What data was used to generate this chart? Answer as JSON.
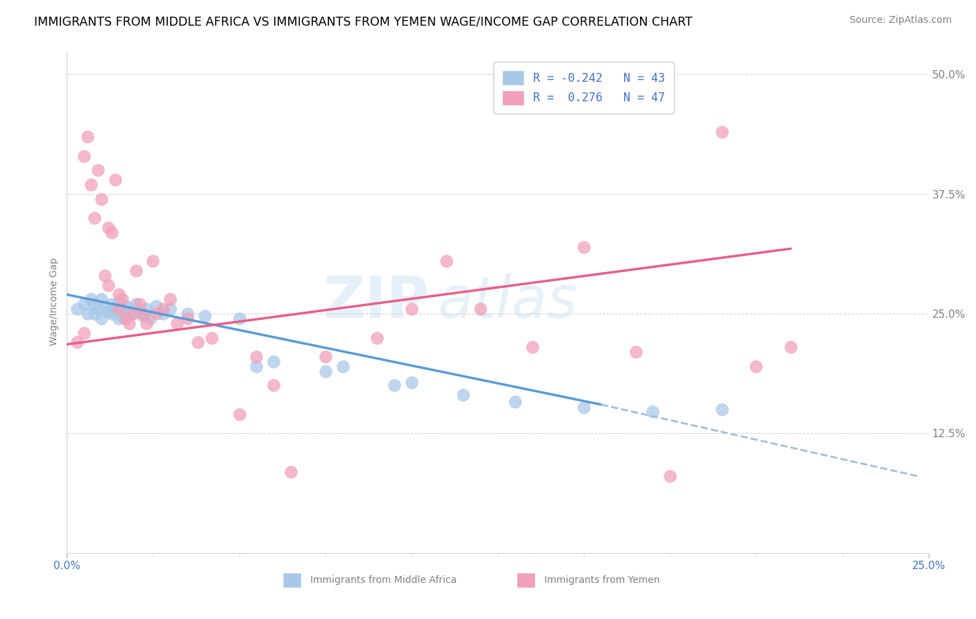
{
  "title": "IMMIGRANTS FROM MIDDLE AFRICA VS IMMIGRANTS FROM YEMEN WAGE/INCOME GAP CORRELATION CHART",
  "source": "Source: ZipAtlas.com",
  "ylabel": "Wage/Income Gap",
  "xlim": [
    0.0,
    0.25
  ],
  "ylim": [
    0.0,
    0.525
  ],
  "y_ticks": [
    0.125,
    0.25,
    0.375,
    0.5
  ],
  "x_ticks": [
    0.0,
    0.25
  ],
  "watermark_zip": "ZIP",
  "watermark_atlas": "atlas",
  "legend1_label": "R = -0.242   N = 43",
  "legend2_label": "R =  0.276   N = 47",
  "scatter_blue_color": "#a8c8e8",
  "scatter_pink_color": "#f0a0b8",
  "line_blue_color": "#5b9bd5",
  "line_pink_color": "#e85f8a",
  "line_dashed_color": "#a0c0d8",
  "background_color": "#ffffff",
  "title_fontsize": 12.5,
  "source_fontsize": 10,
  "legend_fontsize": 12,
  "axis_label_fontsize": 10,
  "tick_fontsize": 11,
  "tick_color_blue": "#4472c4",
  "blue_scatter_x": [
    0.003,
    0.005,
    0.006,
    0.007,
    0.008,
    0.008,
    0.009,
    0.01,
    0.01,
    0.011,
    0.012,
    0.013,
    0.013,
    0.014,
    0.015,
    0.015,
    0.016,
    0.016,
    0.017,
    0.018,
    0.019,
    0.02,
    0.021,
    0.022,
    0.023,
    0.024,
    0.026,
    0.028,
    0.03,
    0.035,
    0.04,
    0.05,
    0.055,
    0.06,
    0.075,
    0.08,
    0.095,
    0.1,
    0.115,
    0.13,
    0.15,
    0.17,
    0.19
  ],
  "blue_scatter_y": [
    0.255,
    0.26,
    0.25,
    0.265,
    0.26,
    0.25,
    0.255,
    0.265,
    0.245,
    0.258,
    0.252,
    0.26,
    0.25,
    0.255,
    0.262,
    0.245,
    0.255,
    0.248,
    0.258,
    0.252,
    0.25,
    0.26,
    0.252,
    0.248,
    0.255,
    0.245,
    0.258,
    0.25,
    0.255,
    0.25,
    0.248,
    0.245,
    0.195,
    0.2,
    0.19,
    0.195,
    0.175,
    0.178,
    0.165,
    0.158,
    0.152,
    0.148,
    0.15
  ],
  "pink_scatter_x": [
    0.003,
    0.005,
    0.005,
    0.006,
    0.007,
    0.008,
    0.009,
    0.01,
    0.011,
    0.012,
    0.012,
    0.013,
    0.014,
    0.015,
    0.015,
    0.016,
    0.017,
    0.018,
    0.019,
    0.02,
    0.021,
    0.022,
    0.023,
    0.025,
    0.026,
    0.028,
    0.03,
    0.032,
    0.035,
    0.038,
    0.042,
    0.05,
    0.055,
    0.06,
    0.065,
    0.075,
    0.09,
    0.1,
    0.11,
    0.12,
    0.135,
    0.15,
    0.165,
    0.175,
    0.19,
    0.2,
    0.21
  ],
  "pink_scatter_y": [
    0.22,
    0.23,
    0.415,
    0.435,
    0.385,
    0.35,
    0.4,
    0.37,
    0.29,
    0.28,
    0.34,
    0.335,
    0.39,
    0.27,
    0.255,
    0.265,
    0.245,
    0.24,
    0.25,
    0.295,
    0.26,
    0.25,
    0.24,
    0.305,
    0.25,
    0.255,
    0.265,
    0.24,
    0.245,
    0.22,
    0.225,
    0.145,
    0.205,
    0.175,
    0.085,
    0.205,
    0.225,
    0.255,
    0.305,
    0.255,
    0.215,
    0.32,
    0.21,
    0.08,
    0.44,
    0.195,
    0.215
  ],
  "blue_line_x": [
    0.0,
    0.155
  ],
  "blue_line_y": [
    0.27,
    0.155
  ],
  "pink_line_x": [
    0.0,
    0.21
  ],
  "pink_line_y": [
    0.218,
    0.318
  ],
  "dashed_line_x": [
    0.155,
    0.247
  ],
  "dashed_line_y": [
    0.155,
    0.08
  ],
  "bottom_legend_items": [
    {
      "label": "Immigrants from Middle Africa",
      "color": "#a8c8e8"
    },
    {
      "label": "Immigrants from Yemen",
      "color": "#f0a0b8"
    }
  ]
}
